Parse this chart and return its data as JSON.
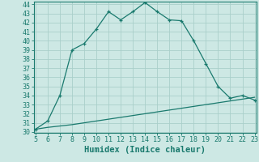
{
  "xlabel": "Humidex (Indice chaleur)",
  "x_main": [
    5,
    6,
    7,
    8,
    9,
    10,
    11,
    12,
    13,
    14,
    15,
    16,
    17,
    18,
    19,
    20,
    21,
    22,
    23
  ],
  "y_main": [
    30.3,
    31.2,
    34.0,
    39.0,
    39.7,
    41.3,
    43.2,
    42.3,
    43.2,
    44.2,
    43.2,
    42.3,
    42.2,
    40.0,
    37.5,
    35.0,
    33.7,
    34.0,
    33.5
  ],
  "x_ref": [
    5,
    6,
    7,
    8,
    9,
    10,
    11,
    12,
    13,
    14,
    15,
    16,
    17,
    18,
    19,
    20,
    21,
    22,
    23
  ],
  "y_ref": [
    30.3,
    30.5,
    30.65,
    30.8,
    31.0,
    31.2,
    31.4,
    31.6,
    31.8,
    32.0,
    32.2,
    32.4,
    32.6,
    32.8,
    33.0,
    33.2,
    33.4,
    33.6,
    33.8
  ],
  "line_color": "#1a7a6e",
  "bg_color": "#cde8e4",
  "grid_color": "#aacfca",
  "ylim": [
    30,
    44
  ],
  "xlim": [
    5,
    23
  ],
  "yticks": [
    30,
    31,
    32,
    33,
    34,
    35,
    36,
    37,
    38,
    39,
    40,
    41,
    42,
    43,
    44
  ],
  "xticks": [
    5,
    6,
    7,
    8,
    9,
    10,
    11,
    12,
    13,
    14,
    15,
    16,
    17,
    18,
    19,
    20,
    21,
    22,
    23
  ],
  "markersize": 3.5,
  "linewidth": 0.9,
  "xlabel_fontsize": 7.5,
  "tick_fontsize": 6.0
}
